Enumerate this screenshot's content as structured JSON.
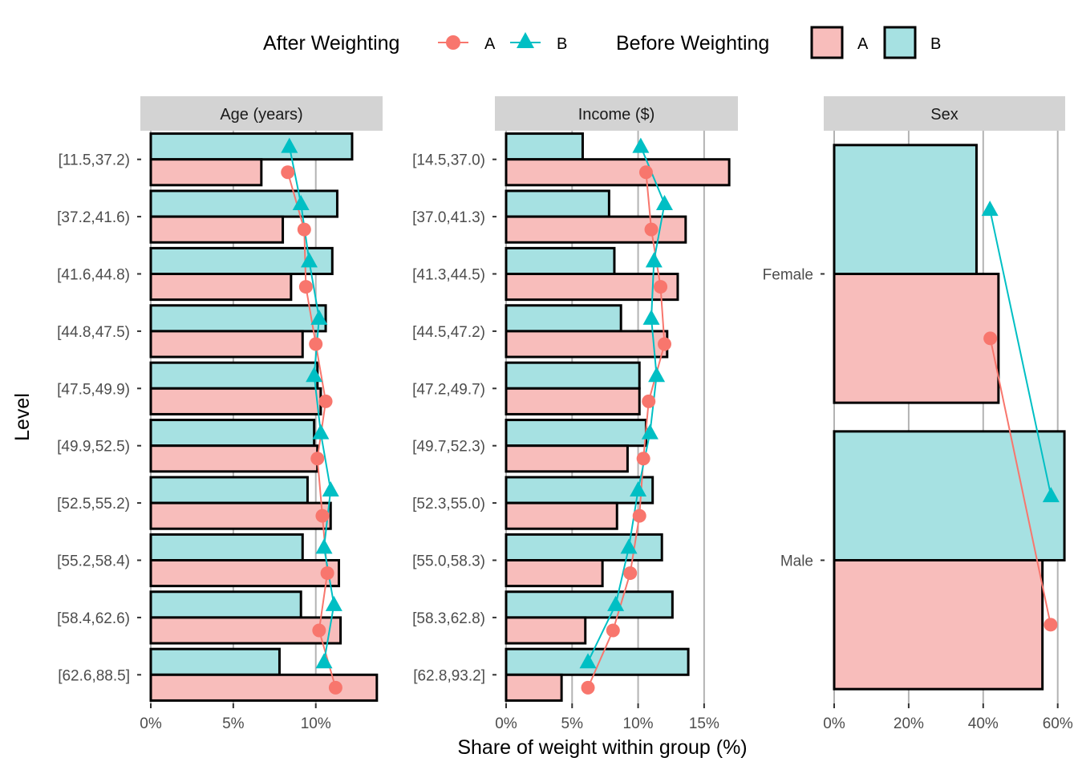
{
  "chart_data": {
    "type": "bar",
    "xlabel": "Share of weight within group (%)",
    "ylabel": "Level",
    "legend": {
      "placement": "top",
      "after_title": "After Weighting",
      "before_title": "Before Weighting",
      "groups": [
        "A",
        "B"
      ]
    },
    "colors": {
      "A_line": "#F8766D",
      "B_line": "#00BFC4",
      "A_fill": "#F8BDBB",
      "B_fill": "#A6E1E2",
      "strip": "#D3D3D3",
      "grid": "#B3B3B3"
    },
    "panels": [
      {
        "title": "Age (years)",
        "xlim": [
          0,
          14
        ],
        "ticks": [
          0,
          5,
          10
        ],
        "tick_labels": [
          "0%",
          "5%",
          "10%"
        ],
        "categories": [
          "[11.5,37.2)",
          "[37.2,41.6)",
          "[41.6,44.8)",
          "[44.8,47.5)",
          "[47.5,49.9)",
          "[49.9,52.5)",
          "[52.5,55.2)",
          "[55.2,58.4)",
          "[58.4,62.6)",
          "[62.6,88.5]"
        ],
        "series": [
          {
            "name": "A",
            "kind": "before",
            "values": [
              6.7,
              8.0,
              8.5,
              9.2,
              10.3,
              10.1,
              10.9,
              11.4,
              11.5,
              13.7
            ]
          },
          {
            "name": "B",
            "kind": "before",
            "values": [
              12.2,
              11.3,
              11.0,
              10.6,
              10.1,
              9.9,
              9.5,
              9.2,
              9.1,
              7.8
            ]
          },
          {
            "name": "A",
            "kind": "after",
            "values": [
              8.3,
              9.3,
              9.4,
              10.0,
              10.6,
              10.1,
              10.4,
              10.7,
              10.2,
              11.2
            ]
          },
          {
            "name": "B",
            "kind": "after",
            "values": [
              8.4,
              9.1,
              9.6,
              10.2,
              9.9,
              10.3,
              10.9,
              10.5,
              11.1,
              10.5
            ]
          }
        ]
      },
      {
        "title": "Income ($)",
        "xlim": [
          0,
          17.5
        ],
        "ticks": [
          0,
          5,
          10,
          15
        ],
        "tick_labels": [
          "0%",
          "5%",
          "10%",
          "15%"
        ],
        "categories": [
          "[14.5,37.0)",
          "[37.0,41.3)",
          "[41.3,44.5)",
          "[44.5,47.2)",
          "[47.2,49.7)",
          "[49.7,52.3)",
          "[52.3,55.0)",
          "[55.0,58.3)",
          "[58.3,62.8)",
          "[62.8,93.2]"
        ],
        "series": [
          {
            "name": "A",
            "kind": "before",
            "values": [
              16.9,
              13.6,
              13.0,
              12.2,
              10.1,
              9.2,
              8.4,
              7.3,
              6.0,
              4.2
            ]
          },
          {
            "name": "B",
            "kind": "before",
            "values": [
              5.8,
              7.8,
              8.2,
              8.7,
              10.1,
              10.6,
              11.1,
              11.8,
              12.6,
              13.8
            ]
          },
          {
            "name": "A",
            "kind": "after",
            "values": [
              10.6,
              11.0,
              11.7,
              12.0,
              10.8,
              10.4,
              10.1,
              9.4,
              8.1,
              6.2
            ]
          },
          {
            "name": "B",
            "kind": "after",
            "values": [
              10.2,
              12.0,
              11.2,
              11.0,
              11.4,
              10.9,
              10.0,
              9.3,
              8.3,
              6.2
            ]
          }
        ]
      },
      {
        "title": "Sex",
        "xlim": [
          0,
          62
        ],
        "ticks": [
          0,
          20,
          40,
          60
        ],
        "tick_labels": [
          "0%",
          "20%",
          "40%",
          "60%"
        ],
        "categories": [
          "Female",
          "Male"
        ],
        "series": [
          {
            "name": "A",
            "kind": "before",
            "values": [
              44.1,
              55.9
            ]
          },
          {
            "name": "B",
            "kind": "before",
            "values": [
              38.2,
              61.8
            ]
          },
          {
            "name": "A",
            "kind": "after",
            "values": [
              41.9,
              58.1
            ]
          },
          {
            "name": "B",
            "kind": "after",
            "values": [
              41.8,
              58.2
            ]
          }
        ]
      }
    ]
  }
}
